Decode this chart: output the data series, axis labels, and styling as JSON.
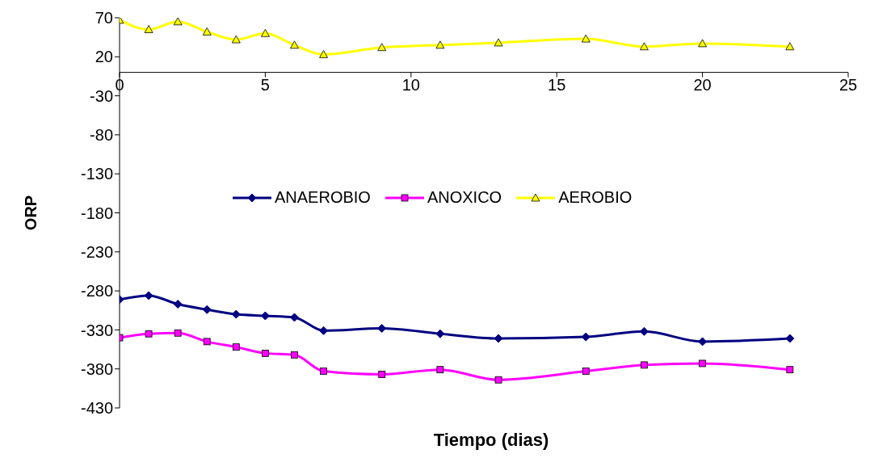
{
  "chart_data": {
    "type": "line",
    "xlabel": "Tiempo (dias)",
    "ylabel": "ORP",
    "x": [
      0,
      1,
      2,
      3,
      4,
      5,
      6,
      7,
      9,
      11,
      13,
      16,
      18,
      20,
      23
    ],
    "xlim": [
      0,
      25
    ],
    "xticks": [
      0,
      5,
      10,
      15,
      20,
      25
    ],
    "ylim": [
      -430,
      70
    ],
    "yticks": [
      -430,
      -380,
      -330,
      -280,
      -230,
      -180,
      -130,
      -80,
      -30,
      20,
      70
    ],
    "legend": "center",
    "grid": false,
    "line_style": "solid",
    "series": [
      {
        "name": "ANAEROBIO",
        "color": "#000080",
        "marker": "diamond",
        "values": [
          -291,
          -286,
          -297,
          -304,
          -310,
          -312,
          -314,
          -331,
          -328,
          -335,
          -341,
          -339,
          -332,
          -345,
          -341
        ]
      },
      {
        "name": "ANOXICO",
        "color": "#ff00ff",
        "marker": "square",
        "values": [
          -340,
          -335,
          -334,
          -345,
          -352,
          -360,
          -362,
          -383,
          -387,
          -381,
          -394,
          -383,
          -375,
          -373,
          -381
        ]
      },
      {
        "name": "AEROBIO",
        "color": "#ffff00",
        "marker": "triangle",
        "values": [
          67,
          55,
          65,
          52,
          42,
          50,
          35,
          23,
          32,
          35,
          38,
          43,
          33,
          37,
          33
        ]
      }
    ]
  }
}
